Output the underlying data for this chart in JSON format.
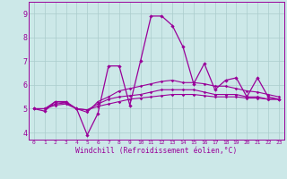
{
  "xlabel": "Windchill (Refroidissement éolien,°C)",
  "bg_color": "#cce8e8",
  "grid_color": "#aacccc",
  "line_color": "#990099",
  "ylim": [
    3.7,
    9.5
  ],
  "xlim": [
    -0.5,
    23.5
  ],
  "yticks": [
    4,
    5,
    6,
    7,
    8,
    9
  ],
  "xticks": [
    0,
    1,
    2,
    3,
    4,
    5,
    6,
    7,
    8,
    9,
    10,
    11,
    12,
    13,
    14,
    15,
    16,
    17,
    18,
    19,
    20,
    21,
    22,
    23
  ],
  "series": [
    [
      5.0,
      4.9,
      5.3,
      5.3,
      5.0,
      3.9,
      4.8,
      6.8,
      6.8,
      5.15,
      7.0,
      8.9,
      8.9,
      8.5,
      7.6,
      6.05,
      6.9,
      5.8,
      6.2,
      6.3,
      5.5,
      6.3,
      5.5,
      5.4
    ],
    [
      5.0,
      5.0,
      5.3,
      5.25,
      5.0,
      4.85,
      5.3,
      5.5,
      5.75,
      5.85,
      5.95,
      6.05,
      6.15,
      6.2,
      6.1,
      6.1,
      6.05,
      5.95,
      5.95,
      5.85,
      5.75,
      5.7,
      5.6,
      5.5
    ],
    [
      5.0,
      5.0,
      5.2,
      5.25,
      5.0,
      4.95,
      5.2,
      5.4,
      5.5,
      5.55,
      5.6,
      5.7,
      5.8,
      5.8,
      5.8,
      5.8,
      5.7,
      5.6,
      5.6,
      5.6,
      5.5,
      5.5,
      5.4,
      5.4
    ],
    [
      5.0,
      5.0,
      5.15,
      5.2,
      5.0,
      4.95,
      5.1,
      5.2,
      5.3,
      5.4,
      5.45,
      5.5,
      5.55,
      5.6,
      5.6,
      5.6,
      5.55,
      5.5,
      5.5,
      5.5,
      5.45,
      5.45,
      5.4,
      5.4
    ]
  ]
}
